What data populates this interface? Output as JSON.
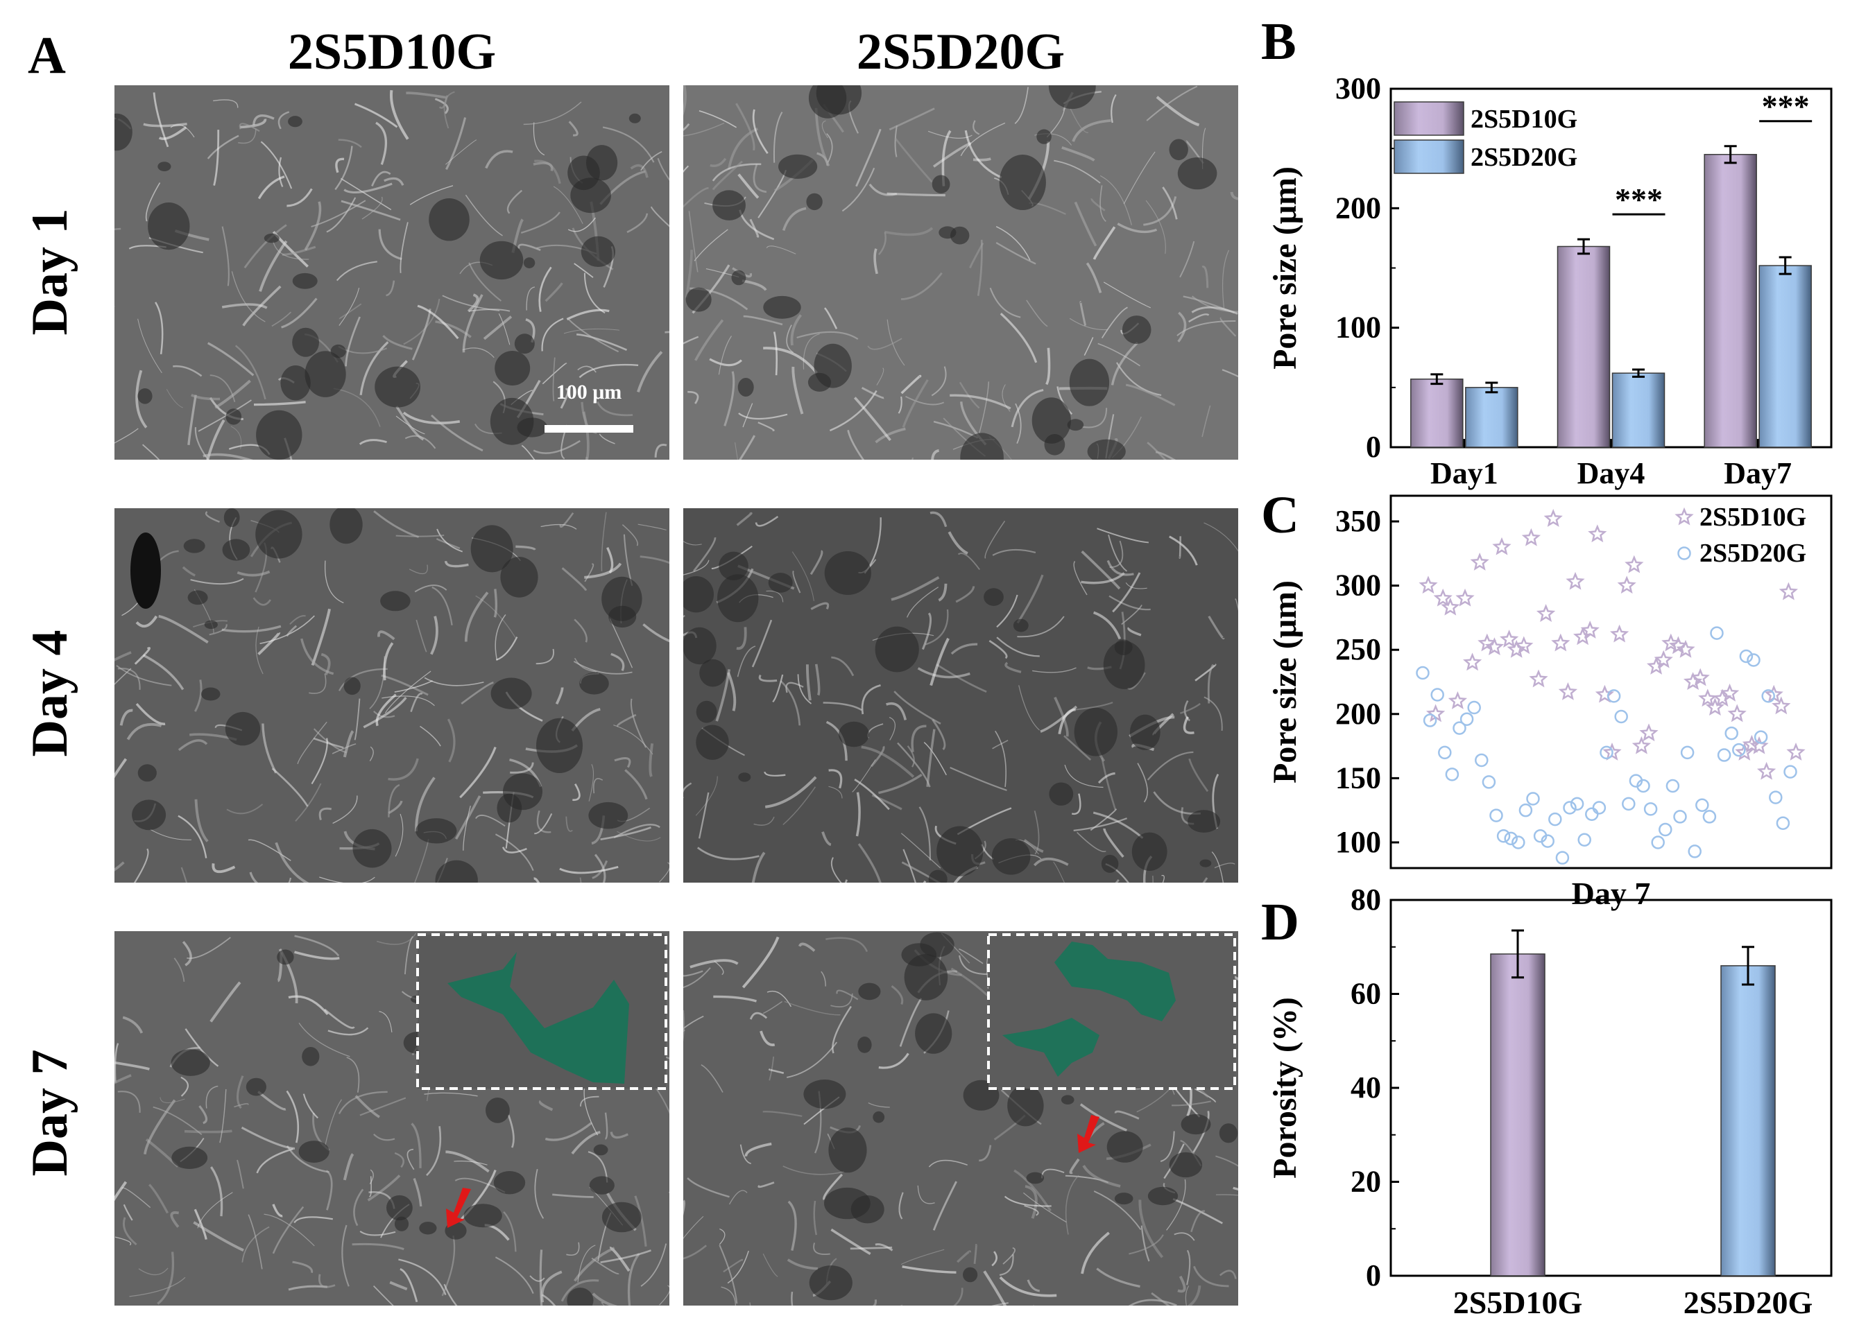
{
  "panel_labels": {
    "a": "A",
    "b": "B",
    "c": "C",
    "d": "D"
  },
  "columns": [
    "2S5D10G",
    "2S5D20G"
  ],
  "rows": [
    "Day 1",
    "Day 4",
    "Day 7"
  ],
  "scale_bar_label": "100 μm",
  "colors": {
    "series1": "#c0aed0",
    "series2": "#9ec2ea",
    "cell_highlight": "#1b7358",
    "arrow": "#e01818",
    "sem_base": "#6e6e6e"
  },
  "chart_data": [
    {
      "panel": "B",
      "type": "bar",
      "ylabel": "Pore size (μm)",
      "xlabel": "",
      "categories": [
        "Day1",
        "Day4",
        "Day7"
      ],
      "ylim": [
        0,
        300
      ],
      "yticks": [
        0,
        100,
        200,
        300
      ],
      "series": [
        {
          "name": "2S5D10G",
          "values": [
            57,
            168,
            245
          ],
          "errors": [
            4,
            6,
            7
          ]
        },
        {
          "name": "2S5D20G",
          "values": [
            50,
            62,
            152
          ],
          "errors": [
            4,
            3,
            7
          ]
        }
      ],
      "significance": [
        {
          "category": "Day4",
          "label": "***"
        },
        {
          "category": "Day7",
          "label": "***"
        }
      ],
      "legend_position": "top-left"
    },
    {
      "panel": "C",
      "type": "scatter",
      "ylabel": "Pore size (μm)",
      "xlabel": "Day 7",
      "ylim": [
        80,
        370
      ],
      "yticks": [
        100,
        150,
        200,
        250,
        300,
        350
      ],
      "series": [
        {
          "name": "2S5D10G",
          "marker": "star",
          "values": [
            300,
            200,
            290,
            283,
            210,
            290,
            240,
            318,
            255,
            252,
            330,
            258,
            250,
            253,
            337,
            227,
            278,
            352,
            255,
            217,
            303,
            260,
            265,
            340,
            215,
            170,
            262,
            300,
            316,
            175,
            185,
            237,
            242,
            255,
            253,
            250,
            225,
            228,
            212,
            205,
            212,
            216,
            200,
            170,
            176,
            175,
            155,
            215,
            206,
            295,
            170
          ]
        },
        {
          "name": "2S5D20G",
          "marker": "circle",
          "values": [
            232,
            195,
            215,
            170,
            153,
            189,
            196,
            205,
            164,
            147,
            121,
            105,
            103,
            100,
            125,
            134,
            105,
            101,
            118,
            88,
            127,
            130,
            102,
            122,
            127,
            170,
            214,
            198,
            130,
            148,
            144,
            126,
            100,
            110,
            144,
            120,
            170,
            93,
            129,
            120,
            263,
            168,
            185,
            172,
            245,
            242,
            182,
            214,
            135,
            115,
            155
          ]
        }
      ],
      "legend_position": "top-right"
    },
    {
      "panel": "D",
      "type": "bar",
      "ylabel": "Porosity (%)",
      "xlabel": "",
      "categories": [
        "2S5D10G",
        "2S5D20G"
      ],
      "values": [
        68.5,
        66
      ],
      "errors": [
        5,
        4
      ],
      "ylim": [
        0,
        80
      ],
      "yticks": [
        0,
        20,
        40,
        60,
        80
      ]
    }
  ]
}
